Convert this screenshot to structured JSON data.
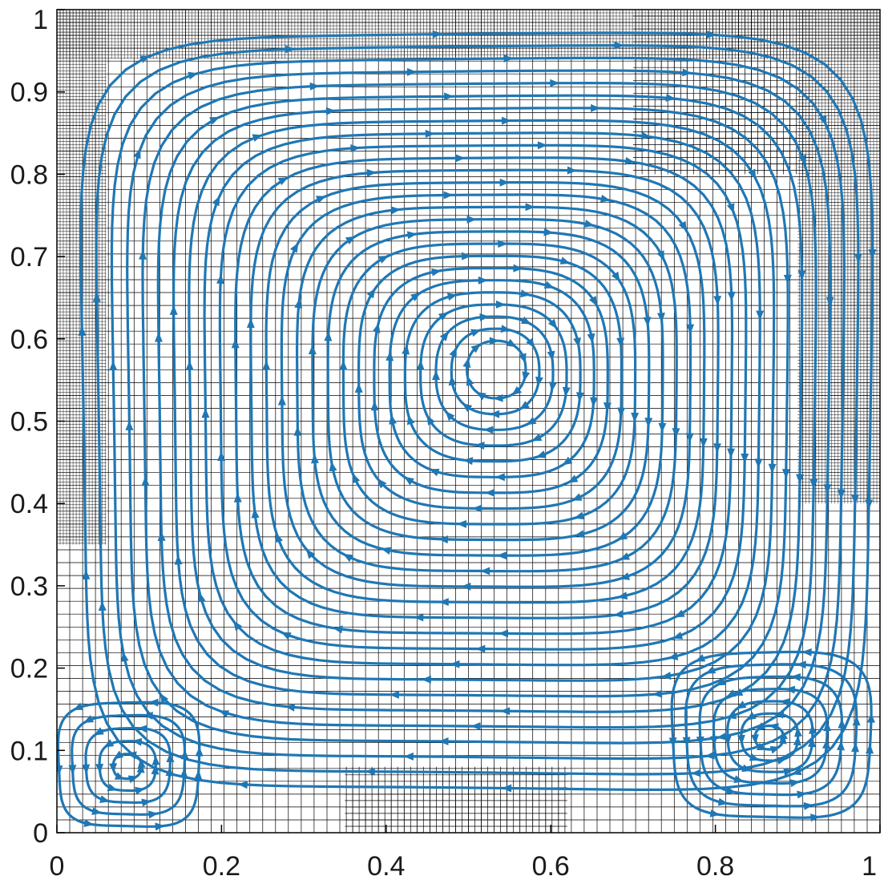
{
  "chart_data": {
    "type": "streamline",
    "title": "",
    "xlabel": "",
    "ylabel": "",
    "xlim": [
      0,
      1
    ],
    "ylim": [
      0,
      1
    ],
    "x_ticks": [
      "0",
      "0.2",
      "0.4",
      "0.6",
      "0.8",
      "1"
    ],
    "y_ticks": [
      "0",
      "0.1",
      "0.2",
      "0.3",
      "0.4",
      "0.5",
      "0.6",
      "0.7",
      "0.8",
      "0.9",
      "1"
    ],
    "grid": "adaptive quadtree mesh",
    "streamline_color": "#1f77b4",
    "mesh_color": "#000000",
    "primary_vortex": {
      "x": 0.535,
      "y": 0.565,
      "rotation": "clockwise"
    },
    "secondary_vortices": [
      {
        "name": "bottom-left",
        "x": 0.085,
        "y": 0.08,
        "rotation": "counterclockwise"
      },
      {
        "name": "bottom-right",
        "x": 0.865,
        "y": 0.115,
        "rotation": "counterclockwise"
      }
    ],
    "mesh_levels": [
      {
        "x0": 0.0,
        "x1": 1.0,
        "y0": 0.0,
        "y1": 1.0,
        "divisions": 64
      },
      {
        "x0": 0.0,
        "x1": 0.06,
        "y0": 0.35,
        "y1": 1.0,
        "divisions": 256
      },
      {
        "x0": 0.0,
        "x1": 1.0,
        "y0": 0.94,
        "y1": 1.0,
        "divisions": 256
      },
      {
        "x0": 0.9,
        "x1": 1.0,
        "y0": 0.4,
        "y1": 1.0,
        "divisions": 256
      },
      {
        "x0": 0.35,
        "x1": 0.62,
        "y0": 0.0,
        "y1": 0.08,
        "divisions": 128
      },
      {
        "x0": 0.7,
        "x1": 0.92,
        "y0": 0.8,
        "y1": 1.0,
        "divisions": 128
      }
    ]
  }
}
